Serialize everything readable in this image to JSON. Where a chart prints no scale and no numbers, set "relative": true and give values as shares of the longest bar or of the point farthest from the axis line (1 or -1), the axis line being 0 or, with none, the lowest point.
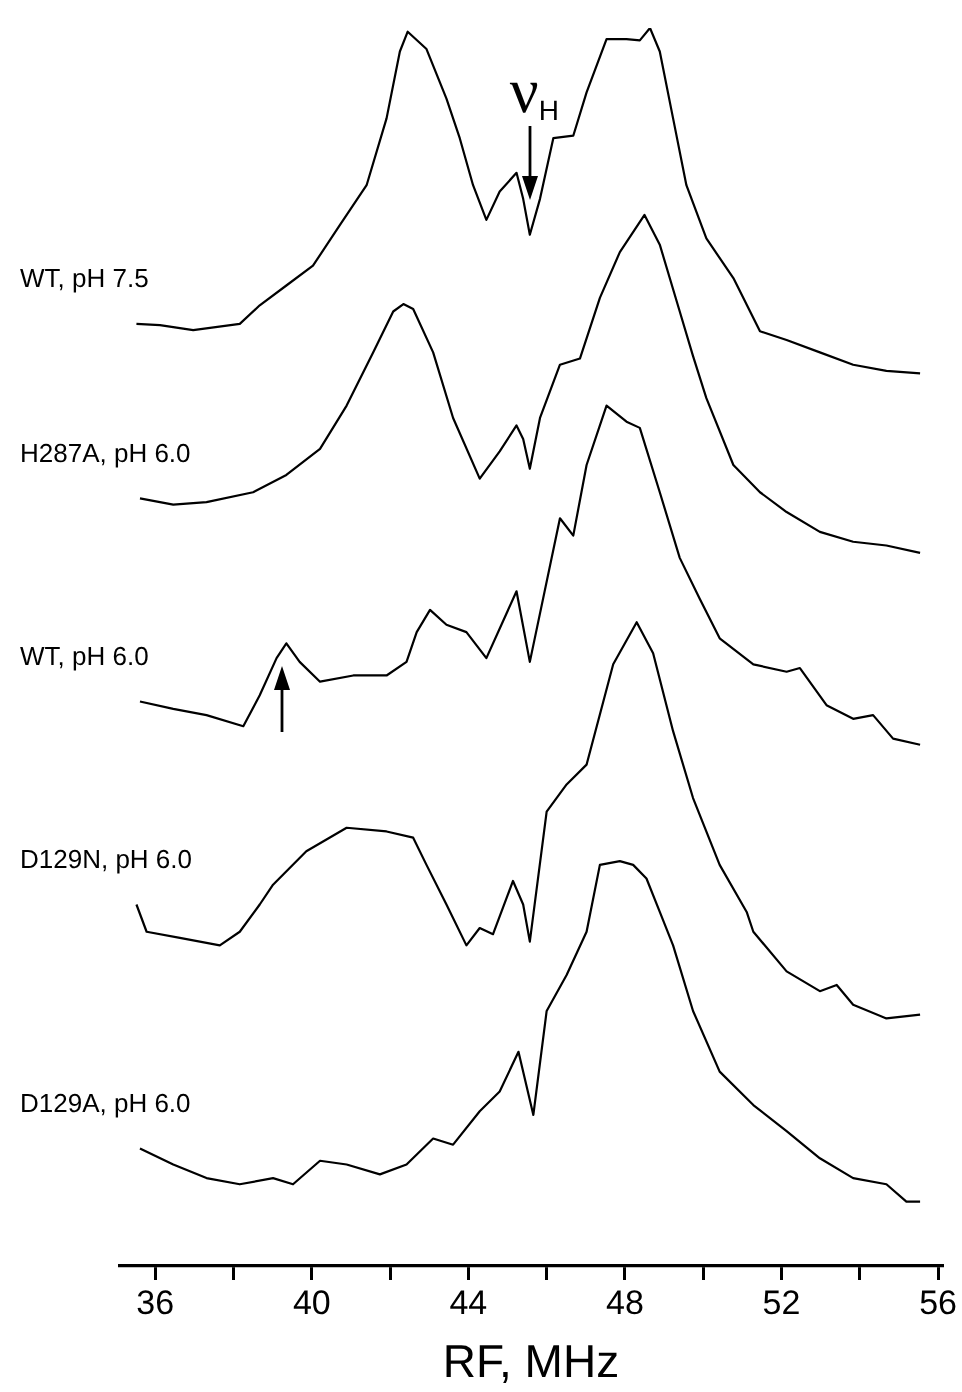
{
  "chart_data": {
    "type": "line",
    "xlabel": "RF, MHz",
    "xlim": [
      35.1,
      56.1
    ],
    "xticks": [
      36,
      {
        "value": 38,
        "label": null
      },
      40,
      {
        "value": 42,
        "label": null
      },
      44,
      {
        "value": 46,
        "label": null
      },
      48,
      {
        "value": 50,
        "label": null
      },
      52,
      {
        "value": 54,
        "label": null
      },
      56
    ],
    "relative": true,
    "legend": false,
    "marker": "none",
    "line_style": "solid",
    "annotations": [
      {
        "text": "ν$_{H}$",
        "x": 45.57,
        "y": 0.833
      }
    ],
    "series": [
      {
        "name": "WT, pH 7.5",
        "color": "#000000",
        "x": [
          35.52,
          36.12,
          36.97,
          38.16,
          38.67,
          39.35,
          40.03,
          40.72,
          41.4,
          41.91,
          42.25,
          42.45,
          42.93,
          43.44,
          43.78,
          44.12,
          44.46,
          44.8,
          45.23,
          45.4,
          45.57,
          45.83,
          46.17,
          46.68,
          47.02,
          47.53,
          48.04,
          48.38,
          48.64,
          48.89,
          49.23,
          49.57,
          50.08,
          50.77,
          51.45,
          52.13,
          52.98,
          53.83,
          54.68,
          55.54
        ],
        "values": [
          0.761,
          0.76,
          0.756,
          0.761,
          0.776,
          0.792,
          0.808,
          0.841,
          0.873,
          0.927,
          0.981,
          0.997,
          0.983,
          0.943,
          0.911,
          0.873,
          0.845,
          0.868,
          0.883,
          0.862,
          0.833,
          0.862,
          0.911,
          0.913,
          0.948,
          0.991,
          0.991,
          0.99,
          1.0,
          0.981,
          0.927,
          0.873,
          0.83,
          0.798,
          0.755,
          0.748,
          0.738,
          0.728,
          0.723,
          0.721
        ]
      },
      {
        "name": "H287A, pH 6.0",
        "color": "#000000",
        "x": [
          35.61,
          36.46,
          37.31,
          38.5,
          39.35,
          40.21,
          40.89,
          41.57,
          42.08,
          42.34,
          42.59,
          43.1,
          43.61,
          44.29,
          44.8,
          45.23,
          45.4,
          45.57,
          45.83,
          46.34,
          46.85,
          47.36,
          47.87,
          48.5,
          48.89,
          49.4,
          49.74,
          50.08,
          50.77,
          51.45,
          52.13,
          52.98,
          53.83,
          54.68,
          55.54
        ],
        "values": [
          0.62,
          0.615,
          0.617,
          0.625,
          0.639,
          0.66,
          0.695,
          0.738,
          0.771,
          0.777,
          0.773,
          0.738,
          0.685,
          0.636,
          0.658,
          0.679,
          0.668,
          0.644,
          0.685,
          0.728,
          0.733,
          0.782,
          0.819,
          0.849,
          0.825,
          0.771,
          0.735,
          0.701,
          0.647,
          0.625,
          0.609,
          0.593,
          0.585,
          0.582,
          0.576
        ]
      },
      {
        "name": "WT, pH 6.0",
        "color": "#000000",
        "x": [
          35.61,
          36.46,
          37.31,
          38.25,
          38.67,
          39.1,
          39.35,
          39.69,
          40.21,
          41.06,
          41.91,
          42.42,
          42.68,
          43.02,
          43.44,
          43.95,
          44.46,
          45.23,
          45.57,
          46.34,
          46.68,
          47.02,
          47.53,
          48.04,
          48.38,
          48.89,
          49.4,
          49.91,
          50.42,
          51.28,
          52.13,
          52.47,
          53.15,
          53.83,
          54.34,
          54.85,
          55.54
        ],
        "values": [
          0.456,
          0.45,
          0.445,
          0.436,
          0.461,
          0.491,
          0.503,
          0.488,
          0.472,
          0.477,
          0.477,
          0.488,
          0.512,
          0.53,
          0.518,
          0.512,
          0.491,
          0.545,
          0.488,
          0.604,
          0.59,
          0.647,
          0.695,
          0.682,
          0.677,
          0.625,
          0.572,
          0.539,
          0.507,
          0.486,
          0.48,
          0.483,
          0.453,
          0.442,
          0.445,
          0.426,
          0.421
        ]
      },
      {
        "name": "D129N, pH 6.0",
        "color": "#000000",
        "x": [
          35.52,
          35.78,
          36.63,
          37.65,
          38.16,
          38.67,
          39.01,
          39.86,
          40.89,
          41.91,
          42.59,
          42.93,
          43.44,
          43.95,
          44.29,
          44.63,
          45.14,
          45.4,
          45.57,
          46.0,
          46.51,
          47.02,
          47.7,
          48.3,
          48.72,
          49.23,
          49.74,
          50.42,
          51.11,
          51.28,
          52.13,
          52.98,
          53.41,
          53.83,
          54.68,
          55.54
        ],
        "values": [
          0.292,
          0.27,
          0.265,
          0.259,
          0.27,
          0.292,
          0.308,
          0.335,
          0.354,
          0.351,
          0.346,
          0.324,
          0.292,
          0.259,
          0.273,
          0.268,
          0.311,
          0.292,
          0.262,
          0.367,
          0.389,
          0.405,
          0.486,
          0.52,
          0.495,
          0.432,
          0.378,
          0.324,
          0.286,
          0.27,
          0.238,
          0.222,
          0.227,
          0.211,
          0.2,
          0.203
        ]
      },
      {
        "name": "D129A, pH 6.0",
        "color": "#000000",
        "x": [
          35.61,
          36.46,
          37.31,
          38.16,
          39.01,
          39.52,
          40.21,
          40.89,
          41.74,
          42.42,
          43.1,
          43.61,
          44.29,
          44.8,
          45.28,
          45.66,
          46.0,
          46.51,
          47.02,
          47.36,
          47.87,
          48.21,
          48.55,
          48.89,
          49.23,
          49.74,
          50.42,
          51.28,
          52.13,
          52.98,
          53.83,
          54.68,
          55.19,
          55.54
        ],
        "values": [
          0.095,
          0.082,
          0.071,
          0.066,
          0.071,
          0.066,
          0.085,
          0.082,
          0.074,
          0.082,
          0.103,
          0.098,
          0.125,
          0.141,
          0.173,
          0.122,
          0.206,
          0.235,
          0.27,
          0.324,
          0.327,
          0.324,
          0.313,
          0.286,
          0.259,
          0.206,
          0.157,
          0.13,
          0.109,
          0.087,
          0.071,
          0.066,
          0.052,
          0.052
        ]
      }
    ]
  }
}
